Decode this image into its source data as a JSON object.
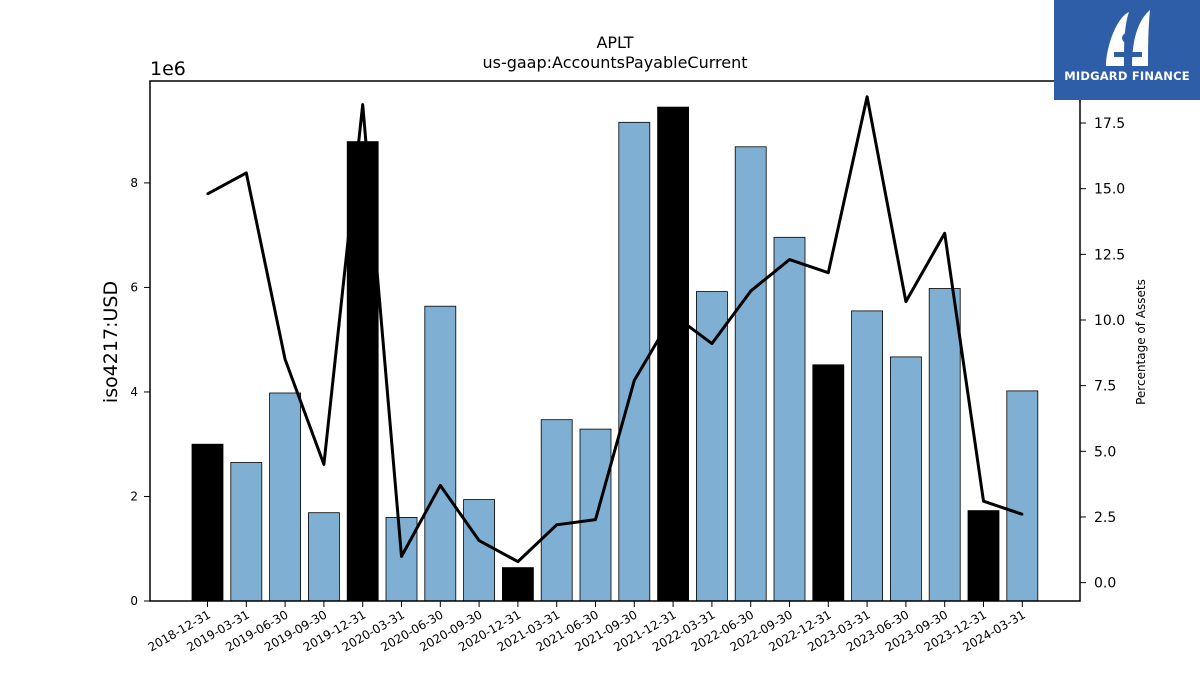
{
  "chart_data": {
    "type": "bar",
    "title": "APLT",
    "subtitle": "us-gaap:AccountsPayableCurrent",
    "ylabel": "iso4217:USD",
    "y_multiplier_label": "1e6",
    "y2label": "Percentage of Assets",
    "ylim": [
      0,
      9950000
    ],
    "y2lim": [
      -0.7,
      19.1
    ],
    "yticks": [
      "0",
      "2",
      "4",
      "6",
      "8"
    ],
    "y2ticks": [
      "0.0",
      "2.5",
      "5.0",
      "7.5",
      "10.0",
      "12.5",
      "15.0",
      "17.5"
    ],
    "categories": [
      "2018-12-31",
      "2019-03-31",
      "2019-06-30",
      "2019-09-30",
      "2019-12-31",
      "2020-03-31",
      "2020-06-30",
      "2020-09-30",
      "2020-12-31",
      "2021-03-31",
      "2021-06-30",
      "2021-09-30",
      "2021-12-31",
      "2022-03-31",
      "2022-06-30",
      "2022-09-30",
      "2022-12-31",
      "2023-03-31",
      "2023-06-30",
      "2023-09-30",
      "2023-12-31",
      "2024-03-31"
    ],
    "series": [
      {
        "type": "bar",
        "values": [
          3000000,
          2650000,
          3980000,
          1690000,
          8790000,
          1600000,
          5640000,
          1940000,
          640000,
          3470000,
          3290000,
          9160000,
          9450000,
          5920000,
          8690000,
          6960000,
          4520000,
          5550000,
          4670000,
          5980000,
          1730000,
          4020000
        ],
        "highlight": [
          true,
          false,
          false,
          false,
          true,
          false,
          false,
          false,
          true,
          false,
          false,
          false,
          true,
          false,
          false,
          false,
          true,
          false,
          false,
          false,
          true,
          false
        ]
      },
      {
        "type": "line",
        "axis": "right",
        "values": [
          14.8,
          15.6,
          8.5,
          4.5,
          18.2,
          1.0,
          3.7,
          1.6,
          0.8,
          2.2,
          2.4,
          7.7,
          10.2,
          9.1,
          11.1,
          12.3,
          11.8,
          18.5,
          10.7,
          13.3,
          3.1,
          2.6
        ]
      }
    ],
    "colors": {
      "bar": "#7fb0d4",
      "bar_highlight": "#000000",
      "line": "#000000"
    },
    "grid": false,
    "legend": "none"
  },
  "logo": {
    "text": "MIDGARD FINANCE",
    "icon": "midgard-logo-icon"
  }
}
